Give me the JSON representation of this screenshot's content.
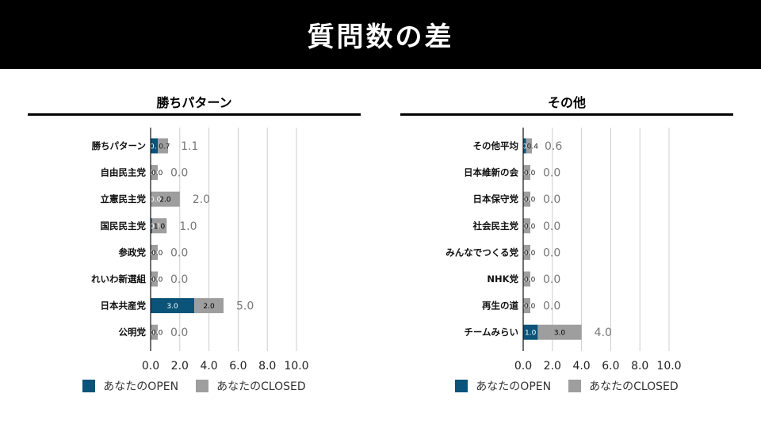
{
  "header": {
    "title": "質問数の差"
  },
  "colors": {
    "open": "#0b5378",
    "closed": "#9e9e9e",
    "header_bg": "#000000"
  },
  "legend": {
    "open_label": "あなたのOPEN",
    "closed_label": "あなたのCLOSED"
  },
  "panels": [
    {
      "title": "勝ちパターン"
    },
    {
      "title": "その他"
    }
  ],
  "chart_data": [
    {
      "type": "bar",
      "orientation": "horizontal",
      "stacked": true,
      "title": "勝ちパターン",
      "categories": [
        "勝ちパターン",
        "自由民主党",
        "立憲民主党",
        "国民民主党",
        "参政党",
        "れいわ新選組",
        "日本共産党",
        "公明党"
      ],
      "series": [
        {
          "name": "あなたのOPEN",
          "values": [
            0.5,
            0.0,
            0.0,
            0.1,
            0.0,
            0.0,
            3.0,
            0.0
          ]
        },
        {
          "name": "あなたのCLOSED",
          "values": [
            0.7,
            0.0,
            2.0,
            1.0,
            0.0,
            0.0,
            2.0,
            0.0
          ]
        }
      ],
      "open_labels": [
        "0.",
        "0.0",
        "0.0",
        "0.1",
        "0.0",
        "0.0",
        "3.0",
        "0.0"
      ],
      "closed_labels": [
        "0.7",
        "0.0",
        "2.0",
        "1.0",
        "0.0",
        "0.0",
        "2.0",
        "0.0"
      ],
      "totals": [
        "1.1",
        "0.0",
        "2.0",
        "1.0",
        "0.0",
        "0.0",
        "5.0",
        "0.0"
      ],
      "xlim": [
        0,
        10
      ],
      "xticks": [
        "0.0",
        "2.0",
        "4.0",
        "6.0",
        "8.0",
        "10.0"
      ],
      "grid": true,
      "legend_position": "bottom"
    },
    {
      "type": "bar",
      "orientation": "horizontal",
      "stacked": true,
      "title": "その他",
      "categories": [
        "その他平均",
        "日本維新の会",
        "日本保守党",
        "社会民主党",
        "みんなでつくる党",
        "NHK党",
        "再生の道",
        "チームみらい"
      ],
      "series": [
        {
          "name": "あなたのOPEN",
          "values": [
            0.2,
            0.0,
            0.0,
            0.0,
            0.0,
            0.0,
            0.0,
            1.0
          ]
        },
        {
          "name": "あなたのCLOSED",
          "values": [
            0.4,
            0.0,
            0.0,
            0.0,
            0.0,
            0.0,
            0.0,
            3.0
          ]
        }
      ],
      "open_labels": [
        "0.",
        "0.0",
        "0.0",
        "0.0",
        "0.0",
        "0.0",
        "0.0",
        "1.0"
      ],
      "closed_labels": [
        "0.4",
        "0.0",
        "0.0",
        "0.0",
        "0.0",
        "0.0",
        "0.0",
        "3.0"
      ],
      "totals": [
        "0.6",
        "0.0",
        "0.0",
        "0.0",
        "0.0",
        "0.0",
        "0.0",
        "4.0"
      ],
      "xlim": [
        0,
        10
      ],
      "xticks": [
        "0.0",
        "2.0",
        "4.0",
        "6.0",
        "8.0",
        "10.0"
      ],
      "grid": true,
      "legend_position": "bottom"
    }
  ]
}
